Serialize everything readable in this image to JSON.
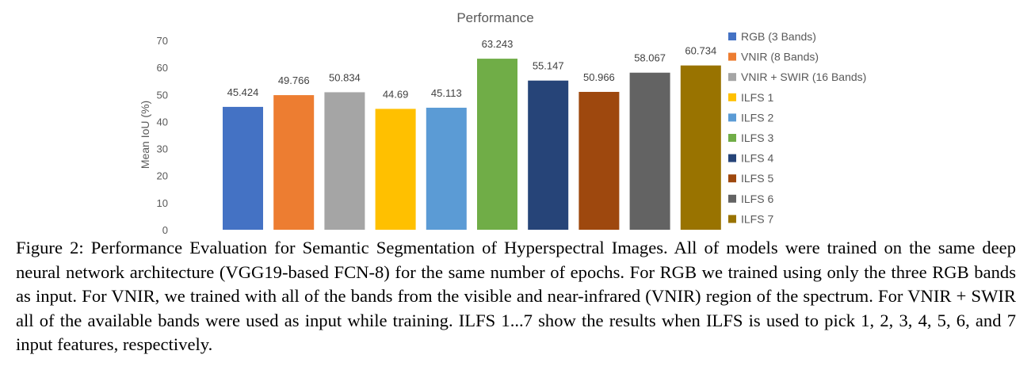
{
  "chart_data": {
    "type": "bar",
    "title": "Performance",
    "ylabel": "Mean IoU (%)",
    "xlabel": "",
    "ylim": [
      0,
      70
    ],
    "yticks": [
      0,
      10,
      20,
      30,
      40,
      50,
      60,
      70
    ],
    "grid": false,
    "legend_position": "right",
    "categories": [
      "RGB (3 Bands)",
      "VNIR (8 Bands)",
      "VNIR + SWIR (16 Bands)",
      "ILFS 1",
      "ILFS 2",
      "ILFS 3",
      "ILFS 4",
      "ILFS 5",
      "ILFS 6",
      "ILFS 7"
    ],
    "values": [
      45.424,
      49.766,
      50.834,
      44.69,
      45.113,
      63.243,
      55.147,
      50.966,
      58.067,
      60.734
    ],
    "value_labels": [
      "45.424",
      "49.766",
      "50.834",
      "44.69",
      "45.113",
      "63.243",
      "55.147",
      "50.966",
      "58.067",
      "60.734"
    ],
    "colors": [
      "#4472c4",
      "#ed7d31",
      "#a5a5a5",
      "#ffc000",
      "#5b9bd5",
      "#70ad47",
      "#264478",
      "#9e480e",
      "#636363",
      "#997300"
    ]
  },
  "caption": {
    "text": "Figure 2: Performance Evaluation for Semantic Segmentation of Hyperspectral Images. All of models were trained on the same deep neural network architecture (VGG19-based FCN-8) for the same number of epochs. For RGB we trained using only the three RGB bands as input. For VNIR, we trained with all of the bands from the visible and near-infrared (VNIR) region of the spectrum. For VNIR + SWIR all of the available bands were used as input while training. ILFS 1...7 show the results when ILFS is used to pick 1, 2, 3, 4, 5, 6, and 7 input features, respectively."
  }
}
